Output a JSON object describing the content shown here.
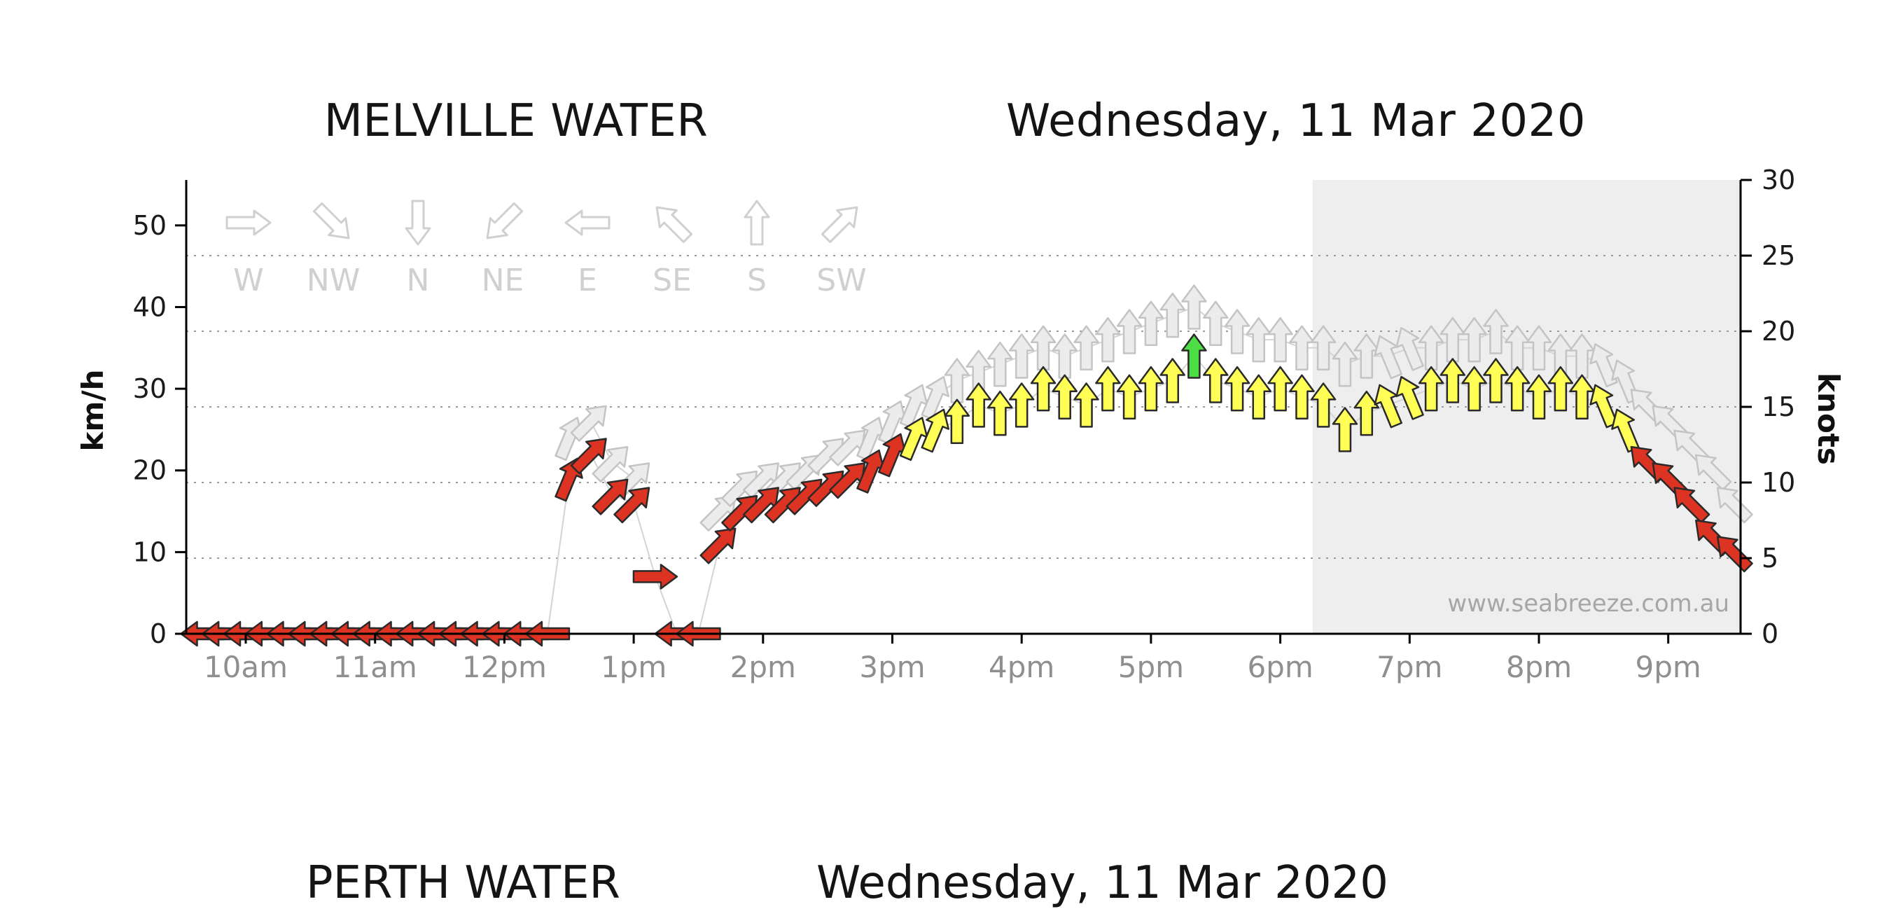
{
  "page": {
    "watermark": "www.seabreeze.com.au",
    "next_section": {
      "station_title": "PERTH WATER",
      "date_title": "Wednesday, 11 Mar 2020"
    }
  },
  "chart_data": {
    "type": "wind-arrows",
    "title": "MELVILLE WATER",
    "subtitle": "Wednesday, 11 Mar 2020",
    "ylabel_left": "km/h",
    "ylabel_right": "knots",
    "y_left_ticks": [
      0,
      10,
      20,
      30,
      40,
      50
    ],
    "y_right_ticks": [
      0,
      5,
      10,
      15,
      20,
      25,
      30
    ],
    "y_right_range_knots": [
      0,
      30
    ],
    "kmh_per_knot": 1.852,
    "x_ticks": [
      {
        "label": "10am",
        "hour": 10
      },
      {
        "label": "11am",
        "hour": 11
      },
      {
        "label": "12pm",
        "hour": 12
      },
      {
        "label": "1pm",
        "hour": 13
      },
      {
        "label": "2pm",
        "hour": 14
      },
      {
        "label": "3pm",
        "hour": 15
      },
      {
        "label": "4pm",
        "hour": 16
      },
      {
        "label": "5pm",
        "hour": 17
      },
      {
        "label": "6pm",
        "hour": 18
      },
      {
        "label": "7pm",
        "hour": 19
      },
      {
        "label": "8pm",
        "hour": 20
      },
      {
        "label": "9pm",
        "hour": 21
      }
    ],
    "grid": "dotted horizontal lines at knots ticks",
    "legend_position": "top-left inside plot",
    "direction_legend": [
      "W",
      "NW",
      "N",
      "NE",
      "E",
      "SE",
      "S",
      "SW"
    ],
    "shaded_from_hour": 18.25,
    "speed_color_thresholds_kmh": {
      "yellow_from": 23,
      "green_from": 32.5
    },
    "colors": {
      "low_red": "#dd3322",
      "medium_yellow": "#ffff55",
      "high_green": "#4ddd44",
      "gust_fill": "#ececec",
      "gust_stroke": "#c4c4c4",
      "arrow_stroke": "#2a2a2a",
      "connect_line": "#d4d4d4",
      "shaded_region": "#eeeeee",
      "grid": "#9a9a9a",
      "axis": "#000000",
      "tick_label": "#1a1a1a",
      "x_label": "#8f8f8f",
      "legend": "#d0d0d0"
    },
    "points": [
      {
        "t": "9:40am",
        "h": 9.667,
        "avg": 0,
        "gust": null,
        "dir": "E"
      },
      {
        "t": "9:50am",
        "h": 9.833,
        "avg": 0,
        "gust": null,
        "dir": "E"
      },
      {
        "t": "10:00am",
        "h": 10,
        "avg": 0,
        "gust": null,
        "dir": "E"
      },
      {
        "t": "10:10am",
        "h": 10.167,
        "avg": 0,
        "gust": null,
        "dir": "E"
      },
      {
        "t": "10:20am",
        "h": 10.333,
        "avg": 0,
        "gust": null,
        "dir": "E"
      },
      {
        "t": "10:30am",
        "h": 10.5,
        "avg": 0,
        "gust": null,
        "dir": "E"
      },
      {
        "t": "10:40am",
        "h": 10.667,
        "avg": 0,
        "gust": null,
        "dir": "E"
      },
      {
        "t": "10:50am",
        "h": 10.833,
        "avg": 0,
        "gust": null,
        "dir": "E"
      },
      {
        "t": "11:00am",
        "h": 11,
        "avg": 0,
        "gust": null,
        "dir": "E"
      },
      {
        "t": "11:10am",
        "h": 11.167,
        "avg": 0,
        "gust": null,
        "dir": "E"
      },
      {
        "t": "11:20am",
        "h": 11.333,
        "avg": 0,
        "gust": null,
        "dir": "E"
      },
      {
        "t": "11:30am",
        "h": 11.5,
        "avg": 0,
        "gust": null,
        "dir": "E"
      },
      {
        "t": "11:40am",
        "h": 11.667,
        "avg": 0,
        "gust": null,
        "dir": "E"
      },
      {
        "t": "11:50am",
        "h": 11.833,
        "avg": 0,
        "gust": null,
        "dir": "E"
      },
      {
        "t": "12:00pm",
        "h": 12,
        "avg": 0,
        "gust": null,
        "dir": "E"
      },
      {
        "t": "12:10pm",
        "h": 12.167,
        "avg": 0,
        "gust": null,
        "dir": "E"
      },
      {
        "t": "12:20pm",
        "h": 12.333,
        "avg": 0,
        "gust": null,
        "dir": "E"
      },
      {
        "t": "12:30pm",
        "h": 12.5,
        "avg": 19,
        "gust": 24,
        "dir": "SSW"
      },
      {
        "t": "12:40pm",
        "h": 12.667,
        "avg": 22,
        "gust": 26,
        "dir": "SW"
      },
      {
        "t": "12:50pm",
        "h": 12.833,
        "avg": 17,
        "gust": 21,
        "dir": "SW"
      },
      {
        "t": "1:00pm",
        "h": 13,
        "avg": 16,
        "gust": 19,
        "dir": "SW"
      },
      {
        "t": "1:10pm",
        "h": 13.167,
        "avg": 7,
        "gust": null,
        "dir": "W"
      },
      {
        "t": "1:20pm",
        "h": 13.333,
        "avg": 0,
        "gust": null,
        "dir": "E"
      },
      {
        "t": "1:30pm",
        "h": 13.5,
        "avg": 0,
        "gust": null,
        "dir": "E"
      },
      {
        "t": "1:40pm",
        "h": 13.667,
        "avg": 11,
        "gust": 15,
        "dir": "SW"
      },
      {
        "t": "1:50pm",
        "h": 13.833,
        "avg": 15,
        "gust": 18,
        "dir": "SW"
      },
      {
        "t": "2:00pm",
        "h": 14,
        "avg": 16,
        "gust": 19,
        "dir": "SW"
      },
      {
        "t": "2:10pm",
        "h": 14.167,
        "avg": 16,
        "gust": 19,
        "dir": "SW"
      },
      {
        "t": "2:20pm",
        "h": 14.333,
        "avg": 17,
        "gust": 20,
        "dir": "SW"
      },
      {
        "t": "2:30pm",
        "h": 14.5,
        "avg": 18,
        "gust": 22,
        "dir": "SW"
      },
      {
        "t": "2:40pm",
        "h": 14.667,
        "avg": 19,
        "gust": 23,
        "dir": "SW"
      },
      {
        "t": "2:50pm",
        "h": 14.833,
        "avg": 20,
        "gust": 24,
        "dir": "SSW"
      },
      {
        "t": "3:00pm",
        "h": 15,
        "avg": 22,
        "gust": 26,
        "dir": "SSW"
      },
      {
        "t": "3:10pm",
        "h": 15.167,
        "avg": 24,
        "gust": 28,
        "dir": "SSW"
      },
      {
        "t": "3:20pm",
        "h": 15.333,
        "avg": 25,
        "gust": 29,
        "dir": "SSW"
      },
      {
        "t": "3:30pm",
        "h": 15.5,
        "avg": 26,
        "gust": 31,
        "dir": "S"
      },
      {
        "t": "3:40pm",
        "h": 15.667,
        "avg": 28,
        "gust": 32,
        "dir": "S"
      },
      {
        "t": "3:50pm",
        "h": 15.833,
        "avg": 27,
        "gust": 33,
        "dir": "S"
      },
      {
        "t": "4:00pm",
        "h": 16,
        "avg": 28,
        "gust": 34,
        "dir": "S"
      },
      {
        "t": "4:10pm",
        "h": 16.167,
        "avg": 30,
        "gust": 35,
        "dir": "S"
      },
      {
        "t": "4:20pm",
        "h": 16.333,
        "avg": 29,
        "gust": 34,
        "dir": "S"
      },
      {
        "t": "4:30pm",
        "h": 16.5,
        "avg": 28,
        "gust": 35,
        "dir": "S"
      },
      {
        "t": "4:40pm",
        "h": 16.667,
        "avg": 30,
        "gust": 36,
        "dir": "S"
      },
      {
        "t": "4:50pm",
        "h": 16.833,
        "avg": 29,
        "gust": 37,
        "dir": "S"
      },
      {
        "t": "5:00pm",
        "h": 17,
        "avg": 30,
        "gust": 38,
        "dir": "S"
      },
      {
        "t": "5:10pm",
        "h": 17.167,
        "avg": 31,
        "gust": 39,
        "dir": "S"
      },
      {
        "t": "5:20pm",
        "h": 17.333,
        "avg": 34,
        "gust": 40,
        "dir": "S"
      },
      {
        "t": "5:30pm",
        "h": 17.5,
        "avg": 31,
        "gust": 38,
        "dir": "S"
      },
      {
        "t": "5:40pm",
        "h": 17.667,
        "avg": 30,
        "gust": 37,
        "dir": "S"
      },
      {
        "t": "5:50pm",
        "h": 17.833,
        "avg": 29,
        "gust": 36,
        "dir": "S"
      },
      {
        "t": "6:00pm",
        "h": 18,
        "avg": 30,
        "gust": 36,
        "dir": "S"
      },
      {
        "t": "6:10pm",
        "h": 18.167,
        "avg": 29,
        "gust": 35,
        "dir": "S"
      },
      {
        "t": "6:20pm",
        "h": 18.333,
        "avg": 28,
        "gust": 35,
        "dir": "S"
      },
      {
        "t": "6:30pm",
        "h": 18.5,
        "avg": 25,
        "gust": 33,
        "dir": "S"
      },
      {
        "t": "6:40pm",
        "h": 18.667,
        "avg": 27,
        "gust": 34,
        "dir": "S"
      },
      {
        "t": "6:50pm",
        "h": 18.833,
        "avg": 28,
        "gust": 34,
        "dir": "SSE"
      },
      {
        "t": "7:00pm",
        "h": 19,
        "avg": 29,
        "gust": 35,
        "dir": "SSE"
      },
      {
        "t": "7:10pm",
        "h": 19.167,
        "avg": 30,
        "gust": 35,
        "dir": "S"
      },
      {
        "t": "7:20pm",
        "h": 19.333,
        "avg": 31,
        "gust": 36,
        "dir": "S"
      },
      {
        "t": "7:30pm",
        "h": 19.5,
        "avg": 30,
        "gust": 36,
        "dir": "S"
      },
      {
        "t": "7:40pm",
        "h": 19.667,
        "avg": 31,
        "gust": 37,
        "dir": "S"
      },
      {
        "t": "7:50pm",
        "h": 19.833,
        "avg": 30,
        "gust": 35,
        "dir": "S"
      },
      {
        "t": "8:00pm",
        "h": 20,
        "avg": 29,
        "gust": 35,
        "dir": "S"
      },
      {
        "t": "8:10pm",
        "h": 20.167,
        "avg": 30,
        "gust": 34,
        "dir": "S"
      },
      {
        "t": "8:20pm",
        "h": 20.333,
        "avg": 29,
        "gust": 34,
        "dir": "S"
      },
      {
        "t": "8:30pm",
        "h": 20.5,
        "avg": 28,
        "gust": 33,
        "dir": "SSE"
      },
      {
        "t": "8:40pm",
        "h": 20.667,
        "avg": 25,
        "gust": 31,
        "dir": "SSE"
      },
      {
        "t": "8:50pm",
        "h": 20.833,
        "avg": 21,
        "gust": 28,
        "dir": "SE"
      },
      {
        "t": "9:00pm",
        "h": 21,
        "avg": 19,
        "gust": 26,
        "dir": "SE"
      },
      {
        "t": "9:10pm",
        "h": 21.167,
        "avg": 16,
        "gust": 23,
        "dir": "SE"
      },
      {
        "t": "9:20pm",
        "h": 21.333,
        "avg": 12,
        "gust": 20,
        "dir": "SE"
      },
      {
        "t": "9:30pm",
        "h": 21.5,
        "avg": 10,
        "gust": 16,
        "dir": "SE"
      }
    ]
  }
}
